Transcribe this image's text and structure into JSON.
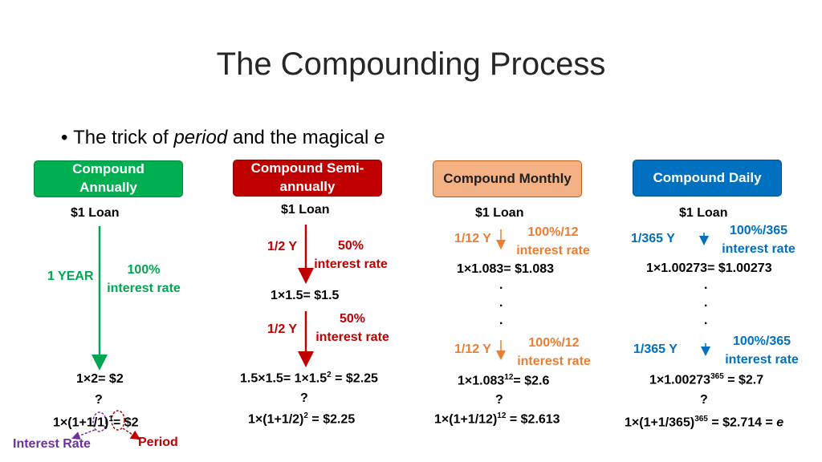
{
  "title": "The Compounding Process",
  "bullet": {
    "pre": "The trick of ",
    "italic1": "period",
    "mid": " and the magical ",
    "italic2": "e"
  },
  "colors": {
    "green": "#00a651",
    "red": "#c00000",
    "orange": "#ed7d31",
    "blue": "#0070c0",
    "purple": "#7030a0"
  },
  "annual": {
    "header": "Compound Annually",
    "loan": "$1 Loan",
    "period": "1 YEAR",
    "rate1": "100%",
    "rate2": "interest rate",
    "result": "1×2= $2",
    "glyph": "?",
    "formula_base": "1×(1+1/1)",
    "formula_exp": "1",
    "formula_value": "= $2",
    "label_rate": "Interest Rate",
    "label_period": "Period"
  },
  "semi": {
    "header": "Compound Semi-annually",
    "loan": "$1 Loan",
    "period1": "1/2 Y",
    "rate1a": "50%",
    "rate1b": "interest rate",
    "mid": "1×1.5= $1.5",
    "period2": "1/2 Y",
    "rate2a": "50%",
    "rate2b": "interest rate",
    "result_base": "1.5×1.5= 1×1.5",
    "result_exp": "2",
    "result_value": " = $2.25",
    "glyph": "?",
    "formula_base": "1×(1+1/2)",
    "formula_exp": "2",
    "formula_value": " = $2.25"
  },
  "monthly": {
    "header": "Compound Monthly",
    "loan": "$1 Loan",
    "period1": "1/12 Y",
    "rate1a": "100%/12",
    "rate1b": "interest rate",
    "mid": "1×1.083= $1.083",
    "dots": ".",
    "period2": "1/12 Y",
    "rate2a": "100%/12",
    "rate2b": "interest rate",
    "result_base": "1×1.083",
    "result_exp": "12",
    "result_value": "= $2.6",
    "glyph": "?",
    "formula_base": "1×(1+1/12)",
    "formula_exp": "12",
    "formula_value": " = $2.613"
  },
  "daily": {
    "header": "Compound Daily",
    "loan": "$1 Loan",
    "period1": "1/365 Y",
    "rate1a": "100%/365",
    "rate1b": "interest rate",
    "mid": "1×1.00273= $1.00273",
    "dots": ".",
    "period2": "1/365 Y",
    "rate2a": "100%/365",
    "rate2b": "interest rate",
    "result_base": "1×1.00273",
    "result_exp": "365",
    "result_value": " = $2.7",
    "glyph": "?",
    "formula_base": "1×(1+1/365)",
    "formula_exp": "365",
    "formula_value": " = $2.714 = ",
    "formula_e": "e"
  }
}
